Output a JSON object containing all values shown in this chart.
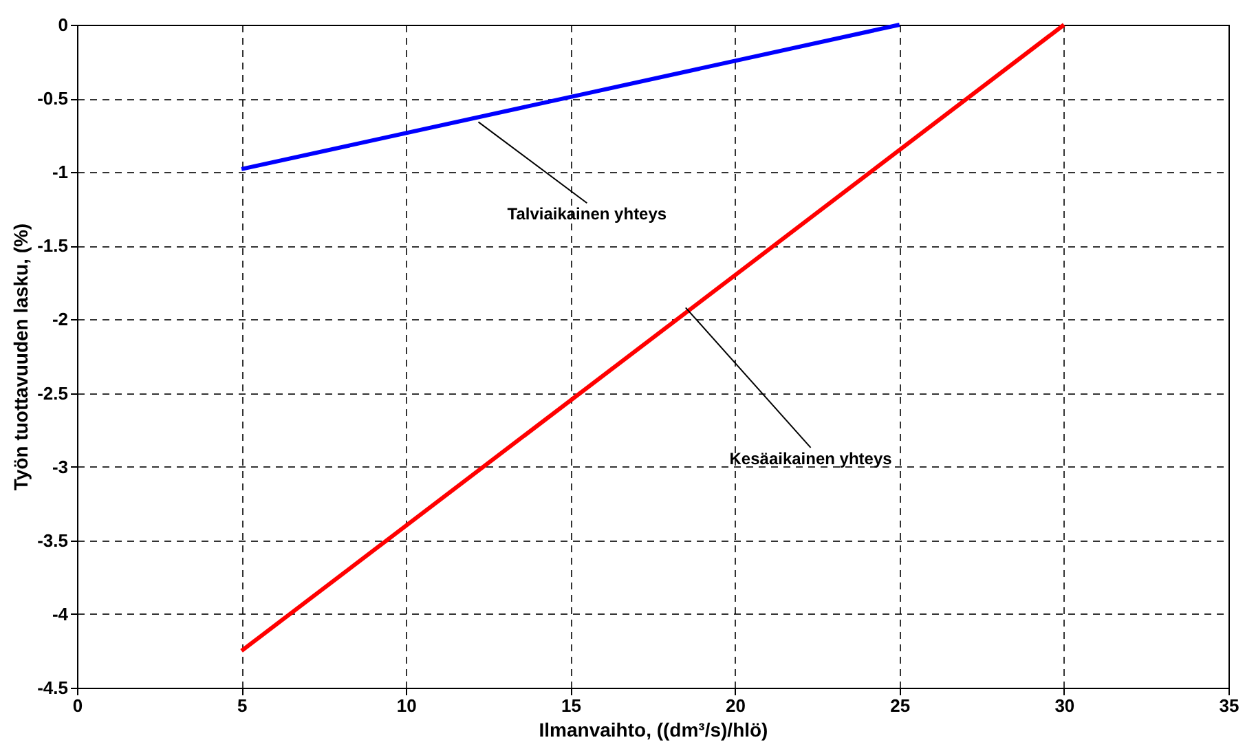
{
  "chart_data": {
    "type": "line",
    "xlabel": "Ilmanvaihto, ((dm³/s)/hlö)",
    "ylabel": "Työn tuottavuuden lasku, (%)",
    "series": [
      {
        "x": [
          5,
          25
        ],
        "values": [
          -0.98,
          0
        ],
        "color": "#0000ff"
      },
      {
        "x": [
          5,
          30
        ],
        "values": [
          -4.25,
          0
        ],
        "color": "#ff0000"
      }
    ],
    "annotations": [
      {
        "text": "Talviaikainen yhteys",
        "x": 12.2,
        "y": -0.66
      },
      {
        "text": "Kesäaikainen yhteys",
        "x": 18.5,
        "y": -1.92
      }
    ],
    "xlim": [
      0,
      35
    ],
    "xticks": [
      0,
      5,
      10,
      15,
      20,
      25,
      30,
      35
    ],
    "ylim": [
      -4.5,
      0
    ],
    "yticks": [
      0,
      -0.5,
      -1,
      -1.5,
      -2,
      -2.5,
      -3,
      -3.5,
      -4,
      -4.5
    ],
    "grid": true,
    "line_style": "solid",
    "marker": "none"
  }
}
